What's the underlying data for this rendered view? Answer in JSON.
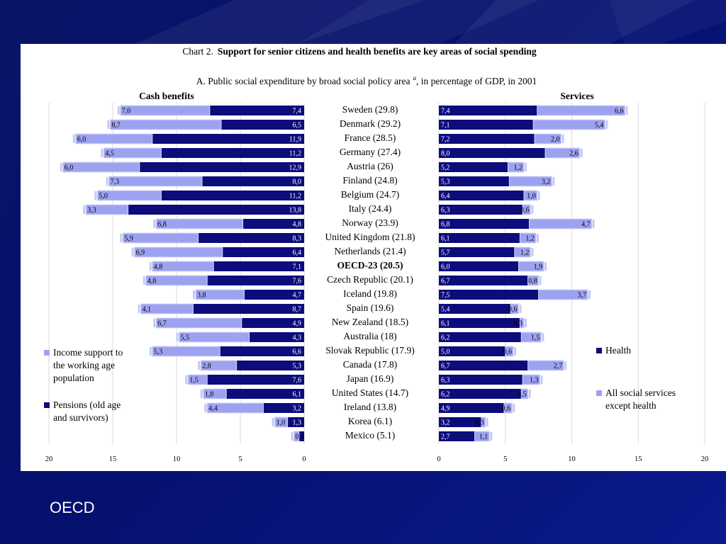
{
  "footer_text": "OECD",
  "chart_data": {
    "type": "bar",
    "title_prefix": "Chart 2.",
    "title": "Support for senior citizens and health benefits are key areas of social spending",
    "subtitle": "A. Public social expenditure by broad social policy area",
    "subtitle_sup": "a",
    "subtitle_suffix": ", in percentage of GDP, in 2001",
    "left_panel": {
      "title": "Cash benefits",
      "xlim": [
        20,
        0
      ],
      "ticks": [
        "20",
        "15",
        "10",
        "5",
        "0"
      ],
      "tick_values": [
        20,
        15,
        10,
        5,
        0
      ],
      "series": [
        {
          "name_lines": [
            "Pensions (old age",
            "and survivors)"
          ],
          "color": "#0c0c7c",
          "values": [
            7.4,
            6.5,
            11.9,
            11.2,
            12.9,
            8.0,
            11.2,
            13.8,
            4.8,
            8.3,
            6.4,
            7.1,
            7.6,
            4.7,
            8.7,
            4.9,
            4.3,
            6.6,
            5.3,
            7.6,
            6.1,
            3.2,
            1.3,
            0.4
          ],
          "labels": [
            "7,4",
            "6,5",
            "11,9",
            "11,2",
            "12,9",
            "8,0",
            "11,2",
            "13,8",
            "4,8",
            "8,3",
            "6,4",
            "7,1",
            "7,6",
            "4,7",
            "8,7",
            "4,9",
            "4,3",
            "6,6",
            "5,3",
            "7,6",
            "6,1",
            "3,2",
            "1,3",
            ""
          ]
        },
        {
          "name_lines": [
            "Income support to",
            "the working age",
            "population"
          ],
          "color": "#9da2f0",
          "values": [
            7.0,
            8.7,
            6.0,
            4.5,
            6.0,
            7.3,
            5.0,
            3.3,
            6.8,
            5.9,
            6.9,
            4.8,
            4.8,
            3.8,
            4.1,
            6.7,
            5.5,
            5.3,
            2.8,
            1.5,
            1.8,
            4.4,
            1.0,
            0.4
          ],
          "labels": [
            "7,0",
            "8,7",
            "6,0",
            "4,5",
            "6,0",
            "7,3",
            "5,0",
            "3,3",
            "6,8",
            "5,9",
            "6,9",
            "4,8",
            "4,8",
            "3,8",
            "4,1",
            "6,7",
            "5,5",
            "5,3",
            "2,8",
            "1,5",
            "1,8",
            "4,4",
            "1,0",
            "0,4"
          ]
        }
      ]
    },
    "right_panel": {
      "title": "Services",
      "xlim": [
        0,
        20
      ],
      "ticks": [
        "0",
        "5",
        "10",
        "15",
        "20"
      ],
      "tick_values": [
        0,
        5,
        10,
        15,
        20
      ],
      "series": [
        {
          "name_lines": [
            "Health"
          ],
          "color": "#0c0c7c",
          "values": [
            7.4,
            7.1,
            7.2,
            8.0,
            5.2,
            5.3,
            6.4,
            6.3,
            6.8,
            6.1,
            5.7,
            6.0,
            6.7,
            7.5,
            5.4,
            6.1,
            6.2,
            5.0,
            6.7,
            6.3,
            6.2,
            4.9,
            3.2,
            2.7
          ],
          "labels": [
            "7,4",
            "7,1",
            "7,2",
            "8,0",
            "5,2",
            "5,3",
            "6,4",
            "6,3",
            "6,8",
            "6,1",
            "5,7",
            "6,0",
            "6,7",
            "7,5",
            "5,4",
            "6,1",
            "6,2",
            "5,0",
            "6,7",
            "6,3",
            "6,2",
            "4,9",
            "3,2",
            "2,7"
          ]
        },
        {
          "name_lines": [
            "All social services",
            "except health"
          ],
          "color": "#9da2f0",
          "values": [
            6.6,
            5.4,
            2.0,
            2.6,
            1.2,
            3.2,
            1.0,
            0.6,
            4.7,
            1.2,
            1.2,
            1.9,
            0.8,
            3.7,
            0.6,
            0.3,
            1.5,
            0.6,
            2.7,
            1.3,
            0.5,
            0.6,
            0.3,
            1.1
          ],
          "labels": [
            "6,6",
            "5,4",
            "2,0",
            "2,6",
            "1,2",
            "3,2",
            "1,0",
            "0,6",
            "4,7",
            "1,2",
            "1,2",
            "1,9",
            "0,8",
            "3,7",
            "0,6",
            "0,3",
            "1,5",
            "0,6",
            "2,7",
            "1,3",
            "0,5",
            "0,6",
            "0,3",
            "1,1"
          ]
        }
      ]
    },
    "categories": [
      "Sweden (29.8)",
      "Denmark (29.2)",
      "France (28.5)",
      "Germany (27.4)",
      "Austria (26)",
      "Finland (24.8)",
      "Belgium (24.7)",
      "Italy (24.4)",
      "Norway (23.9)",
      "United Kingdom (21.8)",
      "Netherlands (21.4)",
      "OECD-23 (20.5)",
      "Czech Republic (20.1)",
      "Iceland (19.8)",
      "Spain (19.6)",
      "New Zealand (18.5)",
      "Australia (18)",
      "Slovak Republic (17.9)",
      "Canada (17.8)",
      "Japan (16.9)",
      "United States (14.7)",
      "Ireland (13.8)",
      "Korea (6.1)",
      "Mexico (5.1)"
    ],
    "highlight_category": "OECD-23 (20.5)"
  }
}
